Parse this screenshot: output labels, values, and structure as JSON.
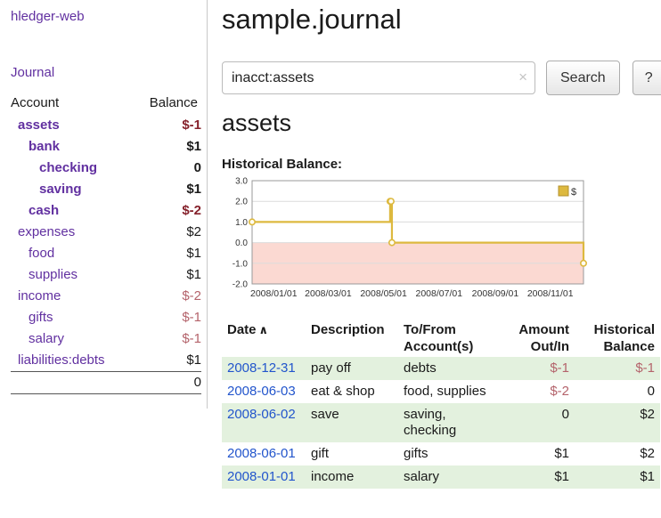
{
  "colors": {
    "link_purple": "#6130a0",
    "link_blue": "#2255cc",
    "negative_strong": "#85212b",
    "negative_soft": "#b4636b",
    "row_stripe_green": "#e3f1de"
  },
  "icons": {
    "sort_asc_icon": "∧",
    "clear_icon": "×"
  },
  "app": {
    "title": "hledger-web"
  },
  "sidebar": {
    "journal_link": "Journal",
    "headers": {
      "account": "Account",
      "balance": "Balance"
    },
    "accounts": [
      {
        "name": "assets",
        "balance": "$-1"
      },
      {
        "name": "bank",
        "balance": "$1"
      },
      {
        "name": "checking",
        "balance": "0"
      },
      {
        "name": "saving",
        "balance": "$1"
      },
      {
        "name": "cash",
        "balance": "$-2"
      },
      {
        "name": "expenses",
        "balance": "$2"
      },
      {
        "name": "food",
        "balance": "$1"
      },
      {
        "name": "supplies",
        "balance": "$1"
      },
      {
        "name": "income",
        "balance": "$-2"
      },
      {
        "name": "gifts",
        "balance": "$-1"
      },
      {
        "name": "salary",
        "balance": "$-1"
      },
      {
        "name": "liabilities:debts",
        "balance": "$1"
      }
    ],
    "total": "0"
  },
  "main": {
    "title": "sample.journal",
    "search": {
      "value": "inacct:assets",
      "button_label": "Search",
      "help_label": "?"
    },
    "account_heading": "assets",
    "chart_title": "Historical Balance:"
  },
  "chart_data": {
    "type": "line",
    "step": true,
    "title": "Historical Balance",
    "x": [
      "2008-01-01",
      "2008-06-01",
      "2008-06-02",
      "2008-06-03",
      "2008-12-31"
    ],
    "series": [
      {
        "name": "$",
        "values": [
          1,
          2,
          2,
          0,
          -1
        ]
      }
    ],
    "xrange": [
      "2008-01-01",
      "2008-12-31"
    ],
    "xticks": [
      "2008-01-01",
      "2008-03-01",
      "2008-05-01",
      "2008-07-01",
      "2008-09-01",
      "2008-11-01"
    ],
    "ylim": [
      -2,
      3
    ],
    "yticks": [
      3,
      2,
      1,
      0,
      -1,
      -2
    ],
    "grid": true,
    "legend_position": "top-right",
    "colors": {
      "line": "#ddb93f",
      "below_zero": "#fbd9d2"
    }
  },
  "register": {
    "headers": {
      "date": "Date",
      "description": "Description",
      "accounts": "To/From Account(s)",
      "amount": "Amount Out/In",
      "balance": "Historical Balance"
    },
    "rows": [
      {
        "date": "2008-12-31",
        "description": "pay off",
        "accounts": "debts",
        "amount": "$-1",
        "balance": "$-1"
      },
      {
        "date": "2008-06-03",
        "description": "eat & shop",
        "accounts": "food, supplies",
        "amount": "$-2",
        "balance": "0"
      },
      {
        "date": "2008-06-02",
        "description": "save",
        "accounts": "saving, checking",
        "amount": "0",
        "balance": "$2"
      },
      {
        "date": "2008-06-01",
        "description": "gift",
        "accounts": "gifts",
        "amount": "$1",
        "balance": "$2"
      },
      {
        "date": "2008-01-01",
        "description": "income",
        "accounts": "salary",
        "amount": "$1",
        "balance": "$1"
      }
    ]
  }
}
